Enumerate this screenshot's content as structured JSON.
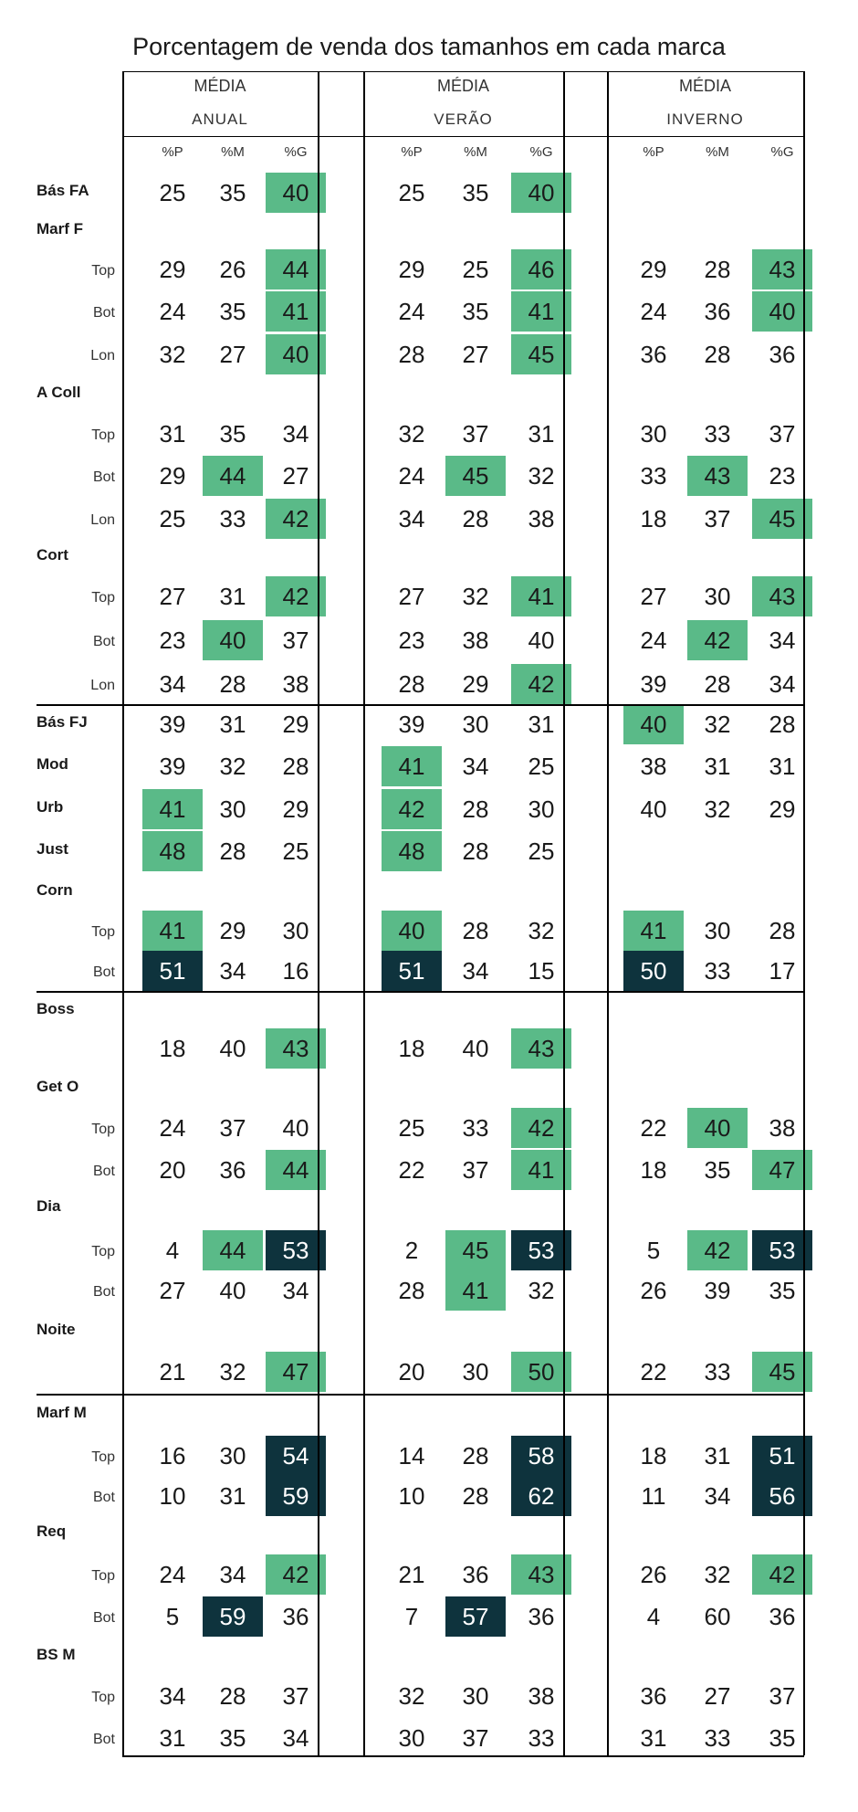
{
  "title": "Porcentagem de venda dos tamanhos em cada marca",
  "colors": {
    "highlight_green": "#5aba88",
    "highlight_dark": "#0e333d"
  },
  "groups": [
    {
      "line1": "MÉDIA",
      "line2": "ANUAL",
      "cols": [
        "%P",
        "%M",
        "%G"
      ]
    },
    {
      "line1": "MÉDIA",
      "line2": "VERÃO",
      "cols": [
        "%P",
        "%M",
        "%G"
      ]
    },
    {
      "line1": "MÉDIA",
      "line2": "INVERNO",
      "cols": [
        "%P",
        "%M",
        "%G"
      ]
    }
  ],
  "chart_data": {
    "type": "table",
    "title": "Porcentagem de venda dos tamanhos em cada marca",
    "rows": [
      {
        "label": "Bás FA",
        "sub": "",
        "values": [
          [
            25,
            35,
            40
          ],
          [
            25,
            35,
            40
          ],
          null
        ],
        "hl": [
          [
            0,
            0,
            1
          ],
          [
            0,
            0,
            1
          ],
          null
        ]
      },
      {
        "label": "Marf F",
        "sub": "",
        "values": null
      },
      {
        "label": "",
        "sub": "Top",
        "values": [
          [
            29,
            26,
            44
          ],
          [
            29,
            25,
            46
          ],
          [
            29,
            28,
            43
          ]
        ],
        "hl": [
          [
            0,
            0,
            1
          ],
          [
            0,
            0,
            1
          ],
          [
            0,
            0,
            1
          ]
        ]
      },
      {
        "label": "",
        "sub": "Bot",
        "values": [
          [
            24,
            35,
            41
          ],
          [
            24,
            35,
            41
          ],
          [
            24,
            36,
            40
          ]
        ],
        "hl": [
          [
            0,
            0,
            1
          ],
          [
            0,
            0,
            1
          ],
          [
            0,
            0,
            1
          ]
        ]
      },
      {
        "label": "",
        "sub": "Lon",
        "values": [
          [
            32,
            27,
            40
          ],
          [
            28,
            27,
            45
          ],
          [
            36,
            28,
            36
          ]
        ],
        "hl": [
          [
            0,
            0,
            1
          ],
          [
            0,
            0,
            1
          ],
          [
            0,
            0,
            0
          ]
        ]
      },
      {
        "label": "A Coll",
        "sub": "",
        "values": null
      },
      {
        "label": "",
        "sub": "Top",
        "values": [
          [
            31,
            35,
            34
          ],
          [
            32,
            37,
            31
          ],
          [
            30,
            33,
            37
          ]
        ],
        "hl": [
          [
            0,
            0,
            0
          ],
          [
            0,
            0,
            0
          ],
          [
            0,
            0,
            0
          ]
        ]
      },
      {
        "label": "",
        "sub": "Bot",
        "values": [
          [
            29,
            44,
            27
          ],
          [
            24,
            45,
            32
          ],
          [
            33,
            43,
            23
          ]
        ],
        "hl": [
          [
            0,
            1,
            0
          ],
          [
            0,
            1,
            0
          ],
          [
            0,
            1,
            0
          ]
        ]
      },
      {
        "label": "",
        "sub": "Lon",
        "values": [
          [
            25,
            33,
            42
          ],
          [
            34,
            28,
            38
          ],
          [
            18,
            37,
            45
          ]
        ],
        "hl": [
          [
            0,
            0,
            1
          ],
          [
            0,
            0,
            0
          ],
          [
            0,
            0,
            1
          ]
        ]
      },
      {
        "label": "Cort",
        "sub": "",
        "values": null
      },
      {
        "label": "",
        "sub": "Top",
        "values": [
          [
            27,
            31,
            42
          ],
          [
            27,
            32,
            41
          ],
          [
            27,
            30,
            43
          ]
        ],
        "hl": [
          [
            0,
            0,
            1
          ],
          [
            0,
            0,
            1
          ],
          [
            0,
            0,
            1
          ]
        ]
      },
      {
        "label": "",
        "sub": "Bot",
        "values": [
          [
            23,
            40,
            37
          ],
          [
            23,
            38,
            40
          ],
          [
            24,
            42,
            34
          ]
        ],
        "hl": [
          [
            0,
            1,
            0
          ],
          [
            0,
            0,
            0
          ],
          [
            0,
            1,
            0
          ]
        ]
      },
      {
        "label": "",
        "sub": "Lon",
        "values": [
          [
            34,
            28,
            38
          ],
          [
            28,
            29,
            42
          ],
          [
            39,
            28,
            34
          ]
        ],
        "hl": [
          [
            0,
            0,
            0
          ],
          [
            0,
            0,
            1
          ],
          [
            0,
            0,
            0
          ]
        ]
      },
      {
        "label": "Bás FJ",
        "sub": "",
        "values": [
          [
            39,
            31,
            29
          ],
          [
            39,
            30,
            31
          ],
          [
            40,
            32,
            28
          ]
        ],
        "hl": [
          [
            0,
            0,
            0
          ],
          [
            0,
            0,
            0
          ],
          [
            1,
            0,
            0
          ]
        ]
      },
      {
        "label": "Mod",
        "sub": "",
        "values": [
          [
            39,
            32,
            28
          ],
          [
            41,
            34,
            25
          ],
          [
            38,
            31,
            31
          ]
        ],
        "hl": [
          [
            0,
            0,
            0
          ],
          [
            1,
            0,
            0
          ],
          [
            0,
            0,
            0
          ]
        ]
      },
      {
        "label": "Urb",
        "sub": "",
        "values": [
          [
            41,
            30,
            29
          ],
          [
            42,
            28,
            30
          ],
          [
            40,
            32,
            29
          ]
        ],
        "hl": [
          [
            1,
            0,
            0
          ],
          [
            1,
            0,
            0
          ],
          [
            0,
            0,
            0
          ]
        ]
      },
      {
        "label": "Just",
        "sub": "",
        "values": [
          [
            48,
            28,
            25
          ],
          [
            48,
            28,
            25
          ],
          null
        ],
        "hl": [
          [
            1,
            0,
            0
          ],
          [
            1,
            0,
            0
          ],
          null
        ]
      },
      {
        "label": "Corn",
        "sub": "",
        "values": null
      },
      {
        "label": "",
        "sub": "Top",
        "values": [
          [
            41,
            29,
            30
          ],
          [
            40,
            28,
            32
          ],
          [
            41,
            30,
            28
          ]
        ],
        "hl": [
          [
            1,
            0,
            0
          ],
          [
            1,
            0,
            0
          ],
          [
            1,
            0,
            0
          ]
        ]
      },
      {
        "label": "",
        "sub": "Bot",
        "values": [
          [
            51,
            34,
            16
          ],
          [
            51,
            34,
            15
          ],
          [
            50,
            33,
            17
          ]
        ],
        "hl": [
          [
            2,
            0,
            0
          ],
          [
            2,
            0,
            0
          ],
          [
            2,
            0,
            0
          ]
        ]
      },
      {
        "label": "Boss",
        "sub": "",
        "values": null
      },
      {
        "label": "",
        "sub": "",
        "values": [
          [
            18,
            40,
            43
          ],
          [
            18,
            40,
            43
          ],
          null
        ],
        "hl": [
          [
            0,
            0,
            1
          ],
          [
            0,
            0,
            1
          ],
          null
        ]
      },
      {
        "label": "Get O",
        "sub": "",
        "values": null
      },
      {
        "label": "",
        "sub": "Top",
        "values": [
          [
            24,
            37,
            40
          ],
          [
            25,
            33,
            42
          ],
          [
            22,
            40,
            38
          ]
        ],
        "hl": [
          [
            0,
            0,
            0
          ],
          [
            0,
            0,
            1
          ],
          [
            0,
            1,
            0
          ]
        ]
      },
      {
        "label": "",
        "sub": "Bot",
        "values": [
          [
            20,
            36,
            44
          ],
          [
            22,
            37,
            41
          ],
          [
            18,
            35,
            47
          ]
        ],
        "hl": [
          [
            0,
            0,
            1
          ],
          [
            0,
            0,
            1
          ],
          [
            0,
            0,
            1
          ]
        ]
      },
      {
        "label": "Dia",
        "sub": "",
        "values": null
      },
      {
        "label": "",
        "sub": "Top",
        "values": [
          [
            4,
            44,
            53
          ],
          [
            2,
            45,
            53
          ],
          [
            5,
            42,
            53
          ]
        ],
        "hl": [
          [
            0,
            1,
            2
          ],
          [
            0,
            1,
            2
          ],
          [
            0,
            1,
            2
          ]
        ]
      },
      {
        "label": "",
        "sub": "Bot",
        "values": [
          [
            27,
            40,
            34
          ],
          [
            28,
            41,
            32
          ],
          [
            26,
            39,
            35
          ]
        ],
        "hl": [
          [
            0,
            0,
            0
          ],
          [
            0,
            1,
            0
          ],
          [
            0,
            0,
            0
          ]
        ]
      },
      {
        "label": "Noite",
        "sub": "",
        "values": null
      },
      {
        "label": "",
        "sub": "",
        "values": [
          [
            21,
            32,
            47
          ],
          [
            20,
            30,
            50
          ],
          [
            22,
            33,
            45
          ]
        ],
        "hl": [
          [
            0,
            0,
            1
          ],
          [
            0,
            0,
            1
          ],
          [
            0,
            0,
            1
          ]
        ]
      },
      {
        "label": "Marf M",
        "sub": "",
        "values": null
      },
      {
        "label": "",
        "sub": "Top",
        "values": [
          [
            16,
            30,
            54
          ],
          [
            14,
            28,
            58
          ],
          [
            18,
            31,
            51
          ]
        ],
        "hl": [
          [
            0,
            0,
            2
          ],
          [
            0,
            0,
            2
          ],
          [
            0,
            0,
            2
          ]
        ]
      },
      {
        "label": "",
        "sub": "Bot",
        "values": [
          [
            10,
            31,
            59
          ],
          [
            10,
            28,
            62
          ],
          [
            11,
            34,
            56
          ]
        ],
        "hl": [
          [
            0,
            0,
            2
          ],
          [
            0,
            0,
            2
          ],
          [
            0,
            0,
            2
          ]
        ]
      },
      {
        "label": "Req",
        "sub": "",
        "values": null
      },
      {
        "label": "",
        "sub": "Top",
        "values": [
          [
            24,
            34,
            42
          ],
          [
            21,
            36,
            43
          ],
          [
            26,
            32,
            42
          ]
        ],
        "hl": [
          [
            0,
            0,
            1
          ],
          [
            0,
            0,
            1
          ],
          [
            0,
            0,
            1
          ]
        ]
      },
      {
        "label": "",
        "sub": "Bot",
        "values": [
          [
            5,
            59,
            36
          ],
          [
            7,
            57,
            36
          ],
          [
            4,
            60,
            36
          ]
        ],
        "hl": [
          [
            0,
            2,
            0
          ],
          [
            0,
            2,
            0
          ],
          [
            0,
            0,
            0
          ]
        ]
      },
      {
        "label": "BS M",
        "sub": "",
        "values": null
      },
      {
        "label": "",
        "sub": "Top",
        "values": [
          [
            34,
            28,
            37
          ],
          [
            32,
            30,
            38
          ],
          [
            36,
            27,
            37
          ]
        ],
        "hl": [
          [
            0,
            0,
            0
          ],
          [
            0,
            0,
            0
          ],
          [
            0,
            0,
            0
          ]
        ]
      },
      {
        "label": "",
        "sub": "Bot",
        "values": [
          [
            31,
            35,
            34
          ],
          [
            30,
            37,
            33
          ],
          [
            31,
            33,
            35
          ]
        ],
        "hl": [
          [
            0,
            0,
            0
          ],
          [
            0,
            0,
            0
          ],
          [
            0,
            0,
            0
          ]
        ]
      }
    ]
  }
}
